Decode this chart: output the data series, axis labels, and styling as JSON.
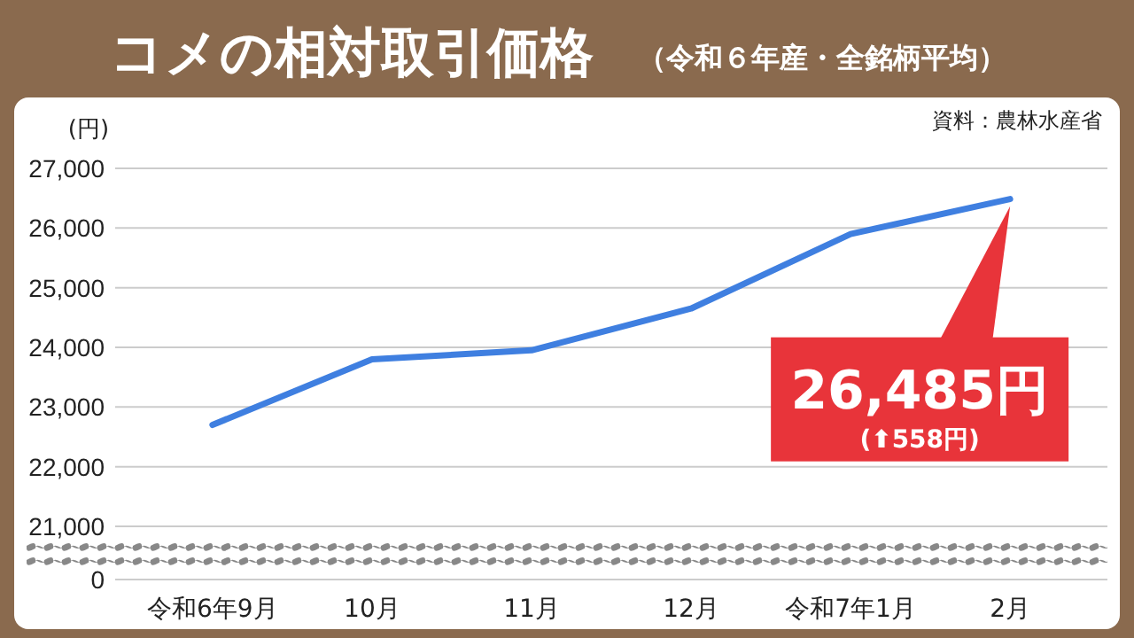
{
  "chart_data": {
    "type": "line",
    "title": "コメの相対取引価格",
    "subtitle": "（令和６年産・全銘柄平均）",
    "ylabel": "(円)",
    "categories": [
      "令和6年9月",
      "10月",
      "11月",
      "12月",
      "令和7年1月",
      "2月"
    ],
    "series": [
      {
        "color": "#3f7fe0",
        "values": [
          22700,
          23800,
          23950,
          24650,
          25900,
          26485
        ]
      }
    ],
    "ylim": [
      21000,
      27000
    ],
    "yticks": [
      {
        "value": 21000,
        "label": "21,000"
      },
      {
        "value": 22000,
        "label": "22,000"
      },
      {
        "value": 23000,
        "label": "23,000"
      },
      {
        "value": 24000,
        "label": "24,000"
      },
      {
        "value": 25000,
        "label": "25,000"
      },
      {
        "value": 26000,
        "label": "26,000"
      },
      {
        "value": 27000,
        "label": "27,000"
      }
    ],
    "grid": "y",
    "marker": "none",
    "line_style": "solid",
    "annotations": [
      "26,485円",
      "(⬆558円)",
      "資料：農林水産省",
      "0"
    ]
  }
}
